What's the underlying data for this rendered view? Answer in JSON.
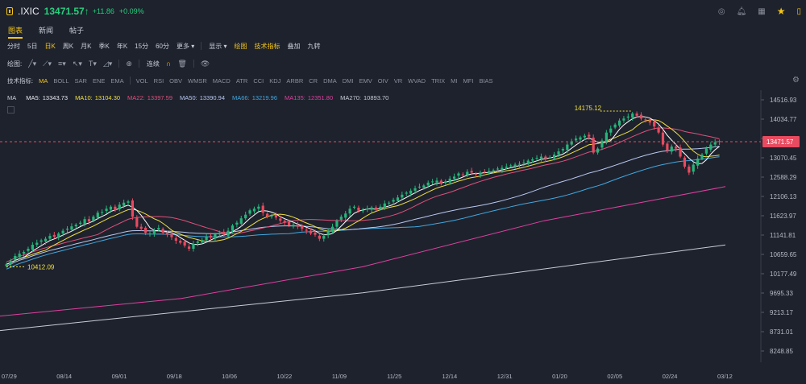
{
  "header": {
    "symbol": ".IXIC",
    "price": "13471.57",
    "price_arrow": "↑",
    "change": "+11.86",
    "change_pct": "+0.09%",
    "icons": [
      "target-icon",
      "bell-icon",
      "grid-icon",
      "star-icon",
      "panel-icon"
    ]
  },
  "tabs": [
    {
      "label": "图表",
      "active": true
    },
    {
      "label": "新闻",
      "active": false
    },
    {
      "label": "帖子",
      "active": false
    }
  ],
  "periods": [
    {
      "label": "分时"
    },
    {
      "label": "5日"
    },
    {
      "label": "日K",
      "active": true
    },
    {
      "label": "周K"
    },
    {
      "label": "月K"
    },
    {
      "label": "季K"
    },
    {
      "label": "年K"
    },
    {
      "label": "15分"
    },
    {
      "label": "60分"
    },
    {
      "label": "更多 ▾"
    }
  ],
  "period_right": [
    {
      "label": "显示 ▾"
    },
    {
      "label": "绘图",
      "hl": true
    },
    {
      "label": "技术指标",
      "hl": true
    },
    {
      "label": "叠加"
    },
    {
      "label": "九转"
    }
  ],
  "drawbar": {
    "label": "绘图:",
    "lock_label": "连续"
  },
  "indicators": {
    "label": "技术指标:",
    "items": [
      "MA",
      "BOLL",
      "SAR",
      "ENE",
      "EMA",
      "VOL",
      "RSI",
      "OBV",
      "WMSR",
      "MACD",
      "ATR",
      "CCI",
      "KDJ",
      "ARBR",
      "CR",
      "DMA",
      "DMI",
      "EMV",
      "OIV",
      "VR",
      "WVAD",
      "TRIX",
      "MI",
      "MFI",
      "BIAS"
    ],
    "active": "MA"
  },
  "ma_legend": [
    {
      "name": "MA",
      "value": "",
      "color": "#c8ccd6"
    },
    {
      "name": "MA5:",
      "value": "13343.73",
      "color": "#e8eaf0"
    },
    {
      "name": "MA10:",
      "value": "13104.30",
      "color": "#f0e040"
    },
    {
      "name": "MA22:",
      "value": "13397.59",
      "color": "#e0507a"
    },
    {
      "name": "MA50:",
      "value": "13390.94",
      "color": "#b8c8f0"
    },
    {
      "name": "MA66:",
      "value": "13219.96",
      "color": "#40a8e0"
    },
    {
      "name": "MA135:",
      "value": "12351.80",
      "color": "#e040a0"
    },
    {
      "name": "MA270:",
      "value": "10893.70",
      "color": "#c8ccd6"
    }
  ],
  "chart_data": {
    "type": "candlestick",
    "colors": {
      "up": "#26b57a",
      "down": "#e84a5f",
      "ma5": "#ffffff",
      "ma10": "#f0e040",
      "ma22": "#e0507a",
      "ma50": "#b8c8f0",
      "ma66": "#40a8e0",
      "ma135": "#e040a0",
      "ma270": "#c8ccd6"
    },
    "y_ticks": [
      "14516.93",
      "14034.77",
      "13552.61",
      "13070.45",
      "12588.29",
      "12106.13",
      "11623.97",
      "11141.81",
      "10659.65",
      "10177.49",
      "9695.33",
      "9213.17",
      "8731.01",
      "8248.85"
    ],
    "ylim": [
      8248.85,
      14516.93
    ],
    "x_ticks": [
      "07/29",
      "08/14",
      "09/01",
      "09/18",
      "10/06",
      "10/22",
      "11/09",
      "11/25",
      "12/14",
      "12/31",
      "01/20",
      "02/05",
      "02/24",
      "03/12"
    ],
    "last_price": "13471.57",
    "high_label": "14175.12",
    "low_label": "10412.09",
    "closes": [
      10412,
      10500,
      10620,
      10680,
      10720,
      10800,
      10900,
      10950,
      11010,
      11050,
      11120,
      11100,
      11180,
      11250,
      11300,
      11360,
      11400,
      11450,
      11540,
      11480,
      11600,
      11700,
      11720,
      11800,
      11850,
      11760,
      11900,
      11950,
      11980,
      11600,
      11350,
      11300,
      11200,
      11180,
      11250,
      11320,
      11200,
      11150,
      11090,
      11000,
      10950,
      10880,
      10800,
      10920,
      10980,
      11020,
      11100,
      11080,
      11160,
      11200,
      11150,
      11250,
      11380,
      11450,
      11560,
      11650,
      11760,
      11800,
      11850,
      11700,
      11600,
      11620,
      11580,
      11500,
      11450,
      11380,
      11400,
      11350,
      11300,
      11250,
      11180,
      11150,
      11050,
      11120,
      11250,
      11350,
      11500,
      11600,
      11680,
      11800,
      11850,
      11750,
      11760,
      11800,
      11830,
      11780,
      11850,
      11930,
      11950,
      12020,
      12080,
      12150,
      12200,
      12250,
      12310,
      12350,
      12380,
      12450,
      12480,
      12500,
      12420,
      12480,
      12550,
      12600,
      12680,
      12640,
      12720,
      12700,
      12650,
      12700,
      12720,
      12740,
      12760,
      12800,
      12820,
      12850,
      12880,
      12900,
      12920,
      12950,
      13000,
      13030,
      13070,
      13100,
      13050,
      13080,
      13150,
      13230,
      13290,
      13400,
      13480,
      13550,
      13580,
      13620,
      13600,
      13200,
      13300,
      13500,
      13700,
      13800,
      13900,
      14000,
      14050,
      14100,
      14175,
      14120,
      14050,
      14010,
      13950,
      13850,
      13700,
      13400,
      13250,
      13350,
      13300,
      13100,
      12850,
      12700,
      12900,
      13050,
      13150,
      13300,
      13400,
      13460,
      13471
    ],
    "ma135_path": [
      [
        0,
        9120
      ],
      [
        0.25,
        9560
      ],
      [
        0.5,
        10350
      ],
      [
        0.75,
        11500
      ],
      [
        1,
        12351.8
      ]
    ],
    "ma270_path": [
      [
        0,
        8760
      ],
      [
        0.5,
        9700
      ],
      [
        1,
        10893.7
      ]
    ]
  }
}
